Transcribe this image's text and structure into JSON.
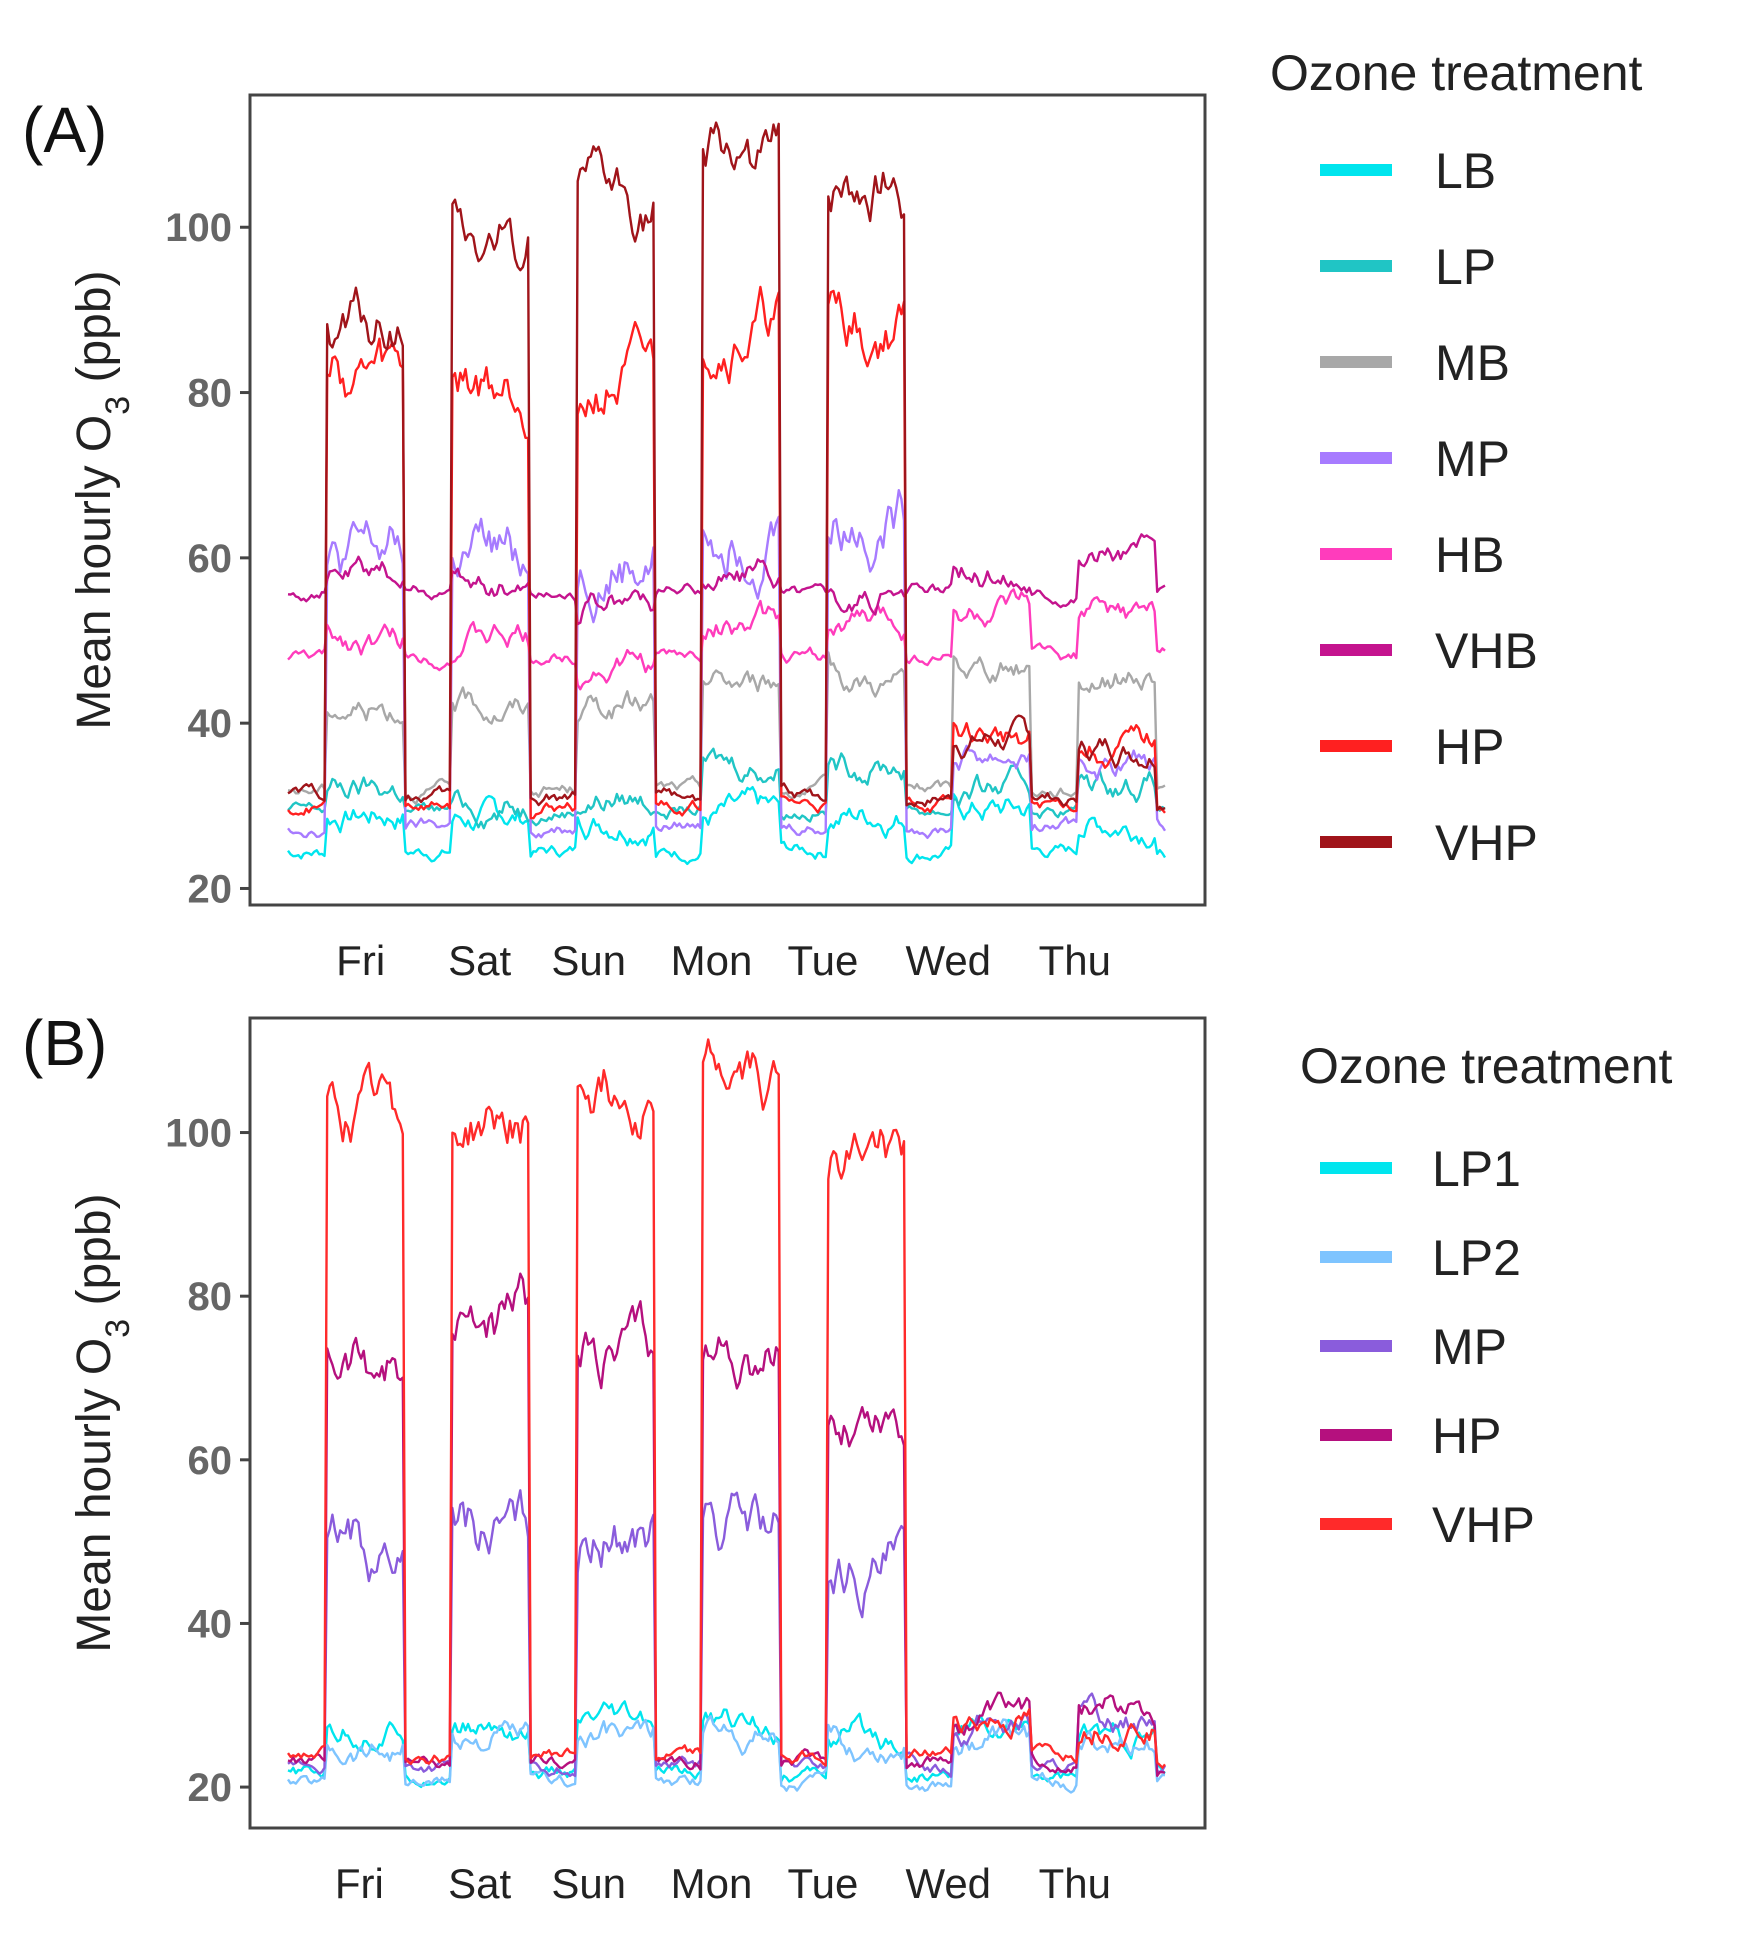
{
  "chart_data": [
    {
      "type": "line",
      "panel_label": "(A)",
      "ylabel_main": "Mean hourly O",
      "ylabel_sub": "3",
      "ylabel_unit": " (ppb)",
      "xlabel": "",
      "ylim": [
        18,
        116
      ],
      "yticks": [
        20,
        40,
        60,
        80,
        100
      ],
      "xlim": [
        0,
        7
      ],
      "day_labels": [
        "Fri",
        "Sat",
        "Sun",
        "Mon",
        "Tue",
        "Wed",
        "Thu"
      ],
      "day_label_positions": [
        0.58,
        1.53,
        2.4,
        3.38,
        4.27,
        5.27,
        6.28
      ],
      "legend_title": "Ozone treatment",
      "series": [
        {
          "name": "LB",
          "color": "#00e5ee",
          "base": 24.5,
          "day": [
            29,
            28.5,
            28.5,
            29,
            29,
            29.5,
            28
          ]
        },
        {
          "name": "LP",
          "color": "#20c5c5",
          "base": 29.5,
          "day": [
            32,
            30,
            31,
            35,
            35,
            32,
            33
          ]
        },
        {
          "name": "MB",
          "color": "#a8a8a8",
          "base": 32,
          "day": [
            42,
            42,
            42,
            45,
            45,
            47,
            46
          ]
        },
        {
          "name": "MP",
          "color": "#a77bff",
          "base": 27.5,
          "day": [
            60,
            60,
            60,
            65,
            65,
            36,
            35
          ]
        },
        {
          "name": "HB",
          "color": "#ff3cbc",
          "base": 48,
          "day": [
            50,
            50,
            47,
            52,
            52,
            53,
            53
          ]
        },
        {
          "name": "VHB",
          "color": "#c4148e",
          "base": 56,
          "day": [
            58,
            57,
            55,
            58,
            55,
            58,
            61
          ]
        },
        {
          "name": "HP",
          "color": "#ff2020",
          "base": 30,
          "day": [
            82,
            81,
            81,
            88,
            88,
            38,
            37
          ]
        },
        {
          "name": "VHP",
          "color": "#a0141a",
          "base": 31,
          "day": [
            88,
            98,
            102,
            108,
            105,
            38,
            37
          ]
        }
      ]
    },
    {
      "type": "line",
      "panel_label": "(B)",
      "ylabel_main": "Mean hourly O",
      "ylabel_sub": "3",
      "ylabel_unit": " (ppb)",
      "xlabel": "",
      "ylim": [
        15,
        114
      ],
      "yticks": [
        20,
        40,
        60,
        80,
        100
      ],
      "xlim": [
        0,
        7
      ],
      "day_labels": [
        "Fri",
        "Sat",
        "Sun",
        "Mon",
        "Tue",
        "Wed",
        "Thu"
      ],
      "day_label_positions": [
        0.57,
        1.53,
        2.4,
        3.38,
        4.27,
        5.27,
        6.28
      ],
      "legend_title": "Ozone treatment",
      "series": [
        {
          "name": "LP1",
          "color": "#00e5ee",
          "base": 21.5,
          "day": [
            27,
            27,
            27,
            28,
            26,
            27,
            26
          ]
        },
        {
          "name": "LP2",
          "color": "#7ec4ff",
          "base": 20.5,
          "day": [
            25,
            26,
            26,
            27,
            25,
            26,
            25
          ]
        },
        {
          "name": "MP",
          "color": "#8a5cdc",
          "base": 22.5,
          "day": [
            49,
            51,
            51,
            52,
            46,
            28,
            28
          ]
        },
        {
          "name": "HP",
          "color": "#b5107e",
          "base": 23,
          "day": [
            72,
            77,
            72,
            73,
            65,
            28,
            30
          ]
        },
        {
          "name": "VHP",
          "color": "#ff2a2a",
          "base": 24,
          "day": [
            101,
            101,
            106,
            106,
            98,
            28,
            28
          ]
        }
      ]
    }
  ]
}
